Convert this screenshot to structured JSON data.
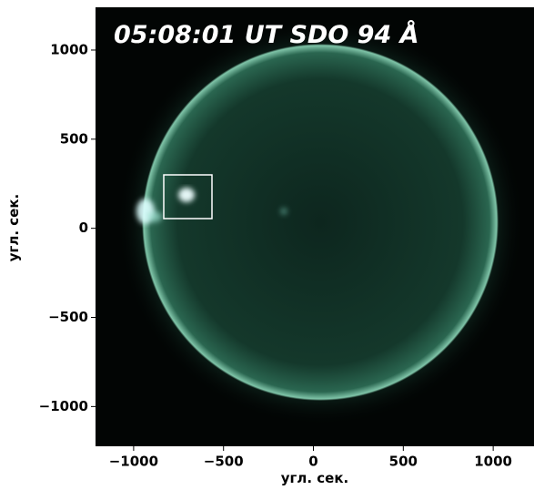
{
  "chart_data": {
    "type": "image",
    "title": "05:08:01 UT SDO 94 Å",
    "xlabel": "угл. сек.",
    "ylabel": "угл. сек.",
    "xlim": [
      -1212,
      1227
    ],
    "ylim": [
      -1223,
      1240
    ],
    "xticks": [
      {
        "value": -1000,
        "label": "−1000"
      },
      {
        "value": -500,
        "label": "−500"
      },
      0,
      500,
      1000
    ],
    "yticks": [
      {
        "value": -1000,
        "label": "−1000"
      },
      {
        "value": -500,
        "label": "−500"
      },
      0,
      500,
      1000
    ]
  }
}
